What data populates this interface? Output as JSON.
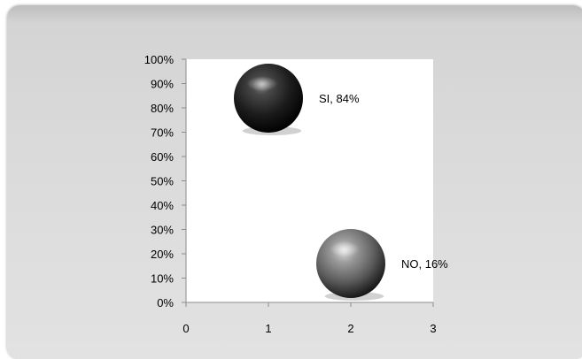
{
  "chart_data": {
    "type": "bubble",
    "title": "",
    "xlabel": "",
    "ylabel": "",
    "xlim": [
      0,
      3
    ],
    "ylim": [
      0,
      100
    ],
    "x_ticks": [
      "0",
      "1",
      "2",
      "3"
    ],
    "y_ticks": [
      "0%",
      "10%",
      "20%",
      "30%",
      "40%",
      "50%",
      "60%",
      "70%",
      "80%",
      "90%",
      "100%"
    ],
    "grid": false,
    "legend": "none",
    "points": [
      {
        "x": 1,
        "y": 84,
        "label": "SI, 84%",
        "color": "#1e1e1e"
      },
      {
        "x": 2,
        "y": 16,
        "label": "NO, 16%",
        "color": "#5a5a5a"
      }
    ]
  }
}
